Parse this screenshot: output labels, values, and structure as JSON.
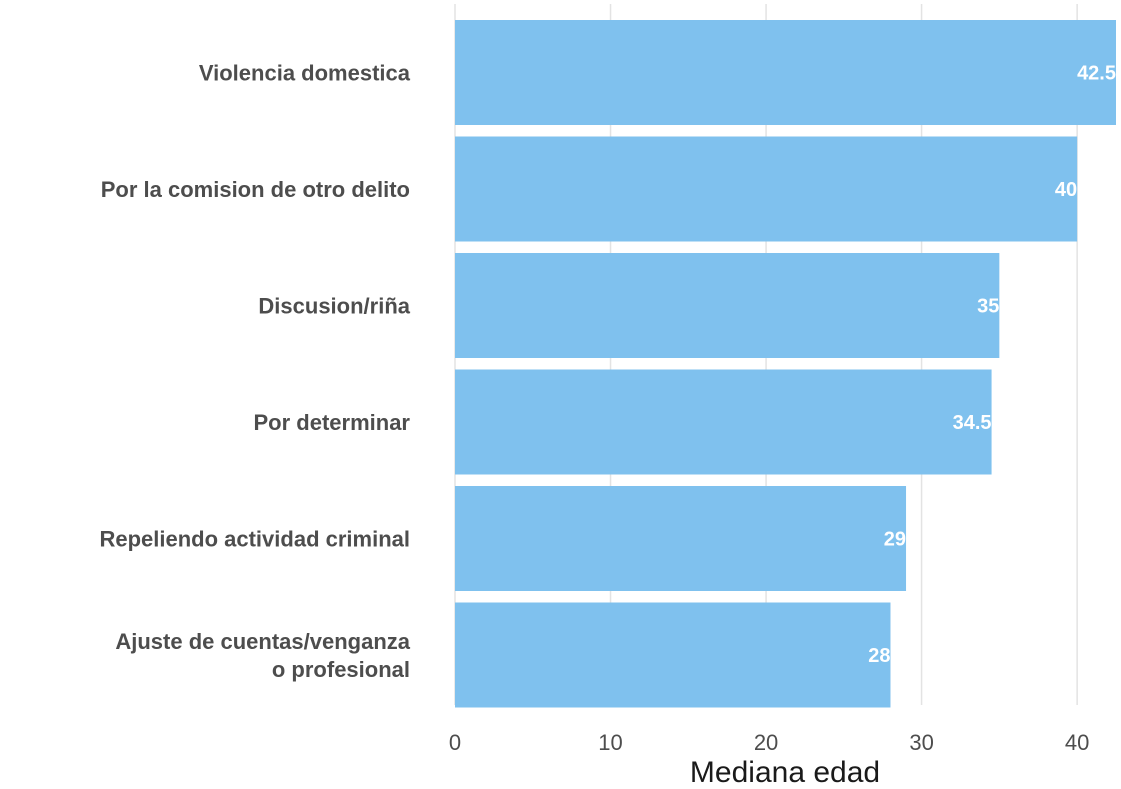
{
  "chart_data": {
    "type": "bar",
    "orientation": "horizontal",
    "categories": [
      [
        "Violencia domestica"
      ],
      [
        "Por la comision de otro delito"
      ],
      [
        "Discusion/riña"
      ],
      [
        "Por determinar"
      ],
      [
        "Repeliendo actividad criminal"
      ],
      [
        "Ajuste de cuentas/venganza",
        "o profesional"
      ]
    ],
    "values": [
      42.5,
      40,
      35,
      34.5,
      29,
      28
    ],
    "value_labels": [
      "42.5",
      "40",
      "35",
      "34.5",
      "29",
      "28"
    ],
    "xlabel": "Mediana edad",
    "ylabel": "",
    "xlim": [
      0,
      42.5
    ],
    "xticks": [
      0,
      10,
      20,
      30,
      40
    ],
    "xtick_labels": [
      "0",
      "10",
      "20",
      "30",
      "40"
    ],
    "grid": true,
    "bar_color": "#7fc1ee"
  }
}
